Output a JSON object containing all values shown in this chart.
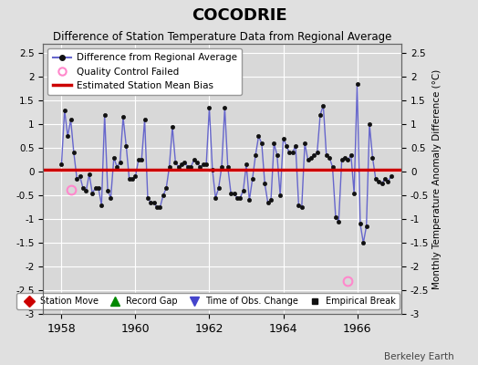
{
  "title": "COCODRIE",
  "subtitle": "Difference of Station Temperature Data from Regional Average",
  "ylabel_right": "Monthly Temperature Anomaly Difference (°C)",
  "watermark": "Berkeley Earth",
  "xlim": [
    1957.5,
    1967.2
  ],
  "ylim": [
    -3.0,
    2.7
  ],
  "yticks": [
    -3,
    -2.5,
    -2,
    -1.5,
    -1,
    -0.5,
    0,
    0.5,
    1,
    1.5,
    2,
    2.5
  ],
  "xticks": [
    1958,
    1960,
    1962,
    1964,
    1966
  ],
  "bias_value": 0.05,
  "background_color": "#e0e0e0",
  "plot_bg_color": "#d8d8d8",
  "line_color": "#6666cc",
  "bias_color": "#cc0000",
  "qc_fail_color": "#ff88cc",
  "data_x": [
    1958.0,
    1958.083,
    1958.167,
    1958.25,
    1958.333,
    1958.417,
    1958.5,
    1958.583,
    1958.667,
    1958.75,
    1958.833,
    1958.917,
    1959.0,
    1959.083,
    1959.167,
    1959.25,
    1959.333,
    1959.417,
    1959.5,
    1959.583,
    1959.667,
    1959.75,
    1959.833,
    1959.917,
    1960.0,
    1960.083,
    1960.167,
    1960.25,
    1960.333,
    1960.417,
    1960.5,
    1960.583,
    1960.667,
    1960.75,
    1960.833,
    1960.917,
    1961.0,
    1961.083,
    1961.167,
    1961.25,
    1961.333,
    1961.417,
    1961.5,
    1961.583,
    1961.667,
    1961.75,
    1961.833,
    1961.917,
    1962.0,
    1962.083,
    1962.167,
    1962.25,
    1962.333,
    1962.417,
    1962.5,
    1962.583,
    1962.667,
    1962.75,
    1962.833,
    1962.917,
    1963.0,
    1963.083,
    1963.167,
    1963.25,
    1963.333,
    1963.417,
    1963.5,
    1963.583,
    1963.667,
    1963.75,
    1963.833,
    1963.917,
    1964.0,
    1964.083,
    1964.167,
    1964.25,
    1964.333,
    1964.417,
    1964.5,
    1964.583,
    1964.667,
    1964.75,
    1964.833,
    1964.917,
    1965.0,
    1965.083,
    1965.167,
    1965.25,
    1965.333,
    1965.417,
    1965.5,
    1965.583,
    1965.667,
    1965.75,
    1965.833,
    1965.917,
    1966.0,
    1966.083,
    1966.167,
    1966.25,
    1966.333,
    1966.417,
    1966.5,
    1966.583,
    1966.667,
    1966.75,
    1966.833,
    1966.917
  ],
  "data_y": [
    0.15,
    1.3,
    0.75,
    1.1,
    0.4,
    -0.15,
    -0.1,
    -0.35,
    -0.4,
    -0.05,
    -0.45,
    -0.35,
    -0.35,
    -0.7,
    1.2,
    -0.4,
    -0.55,
    0.3,
    0.1,
    0.2,
    1.15,
    0.55,
    -0.15,
    -0.15,
    -0.1,
    0.25,
    0.25,
    1.1,
    -0.55,
    -0.65,
    -0.65,
    -0.75,
    -0.75,
    -0.5,
    -0.35,
    0.1,
    0.95,
    0.2,
    0.1,
    0.15,
    0.2,
    0.1,
    0.1,
    0.25,
    0.2,
    0.1,
    0.15,
    0.15,
    1.35,
    0.05,
    -0.55,
    -0.35,
    0.1,
    1.35,
    0.1,
    -0.45,
    -0.45,
    -0.55,
    -0.55,
    -0.4,
    0.15,
    -0.6,
    -0.15,
    0.35,
    0.75,
    0.6,
    -0.25,
    -0.65,
    -0.6,
    0.6,
    0.35,
    -0.5,
    0.7,
    0.55,
    0.4,
    0.4,
    0.55,
    -0.7,
    -0.75,
    0.6,
    0.25,
    0.3,
    0.35,
    0.4,
    1.2,
    1.4,
    0.35,
    0.3,
    0.1,
    -0.95,
    -1.05,
    0.25,
    0.3,
    0.25,
    0.35,
    -0.45,
    1.85,
    -1.1,
    -1.5,
    -1.15,
    1.0,
    0.3,
    -0.15,
    -0.2,
    -0.25,
    -0.15,
    -0.2,
    -0.1
  ],
  "qc_fail_points": [
    [
      1958.25,
      -0.38
    ],
    [
      1965.75,
      -2.3
    ]
  ],
  "legend2_items": [
    {
      "label": "Station Move",
      "color": "#cc0000",
      "marker": "D",
      "markersize": 6
    },
    {
      "label": "Record Gap",
      "color": "#008800",
      "marker": "^",
      "markersize": 7
    },
    {
      "label": "Time of Obs. Change",
      "color": "#4444cc",
      "marker": "v",
      "markersize": 7
    },
    {
      "label": "Empirical Break",
      "color": "#111111",
      "marker": "s",
      "markersize": 5
    }
  ]
}
